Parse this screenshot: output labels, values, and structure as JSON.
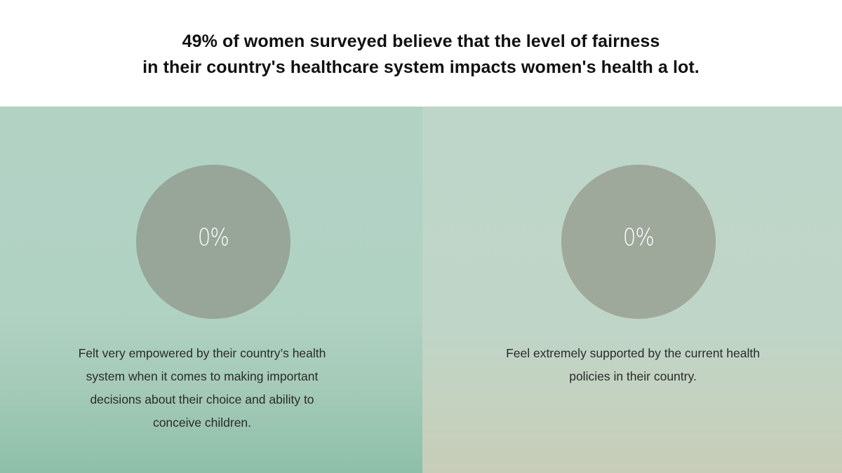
{
  "header": {
    "headline_lines": [
      "49% of women surveyed believe that the level of fairness",
      "in their country's healthcare system impacts women's health a lot."
    ]
  },
  "stats": [
    {
      "value": "0%",
      "caption_lines": [
        "Felt very empowered by their country’s health",
        "system when it comes to making important",
        "decisions about their choice and ability to",
        "conceive children."
      ]
    },
    {
      "value": "0%",
      "caption_lines": [
        "Feel extremely supported by the current health",
        "policies in their country."
      ]
    }
  ],
  "colors": {
    "left_panel": "#b0d2c3",
    "right_panel": "#bfd5c8",
    "left_circle": "#97a698",
    "right_circle": "#9ea89b",
    "headline_text": "#111111",
    "caption_text": "#2a2a2a"
  }
}
